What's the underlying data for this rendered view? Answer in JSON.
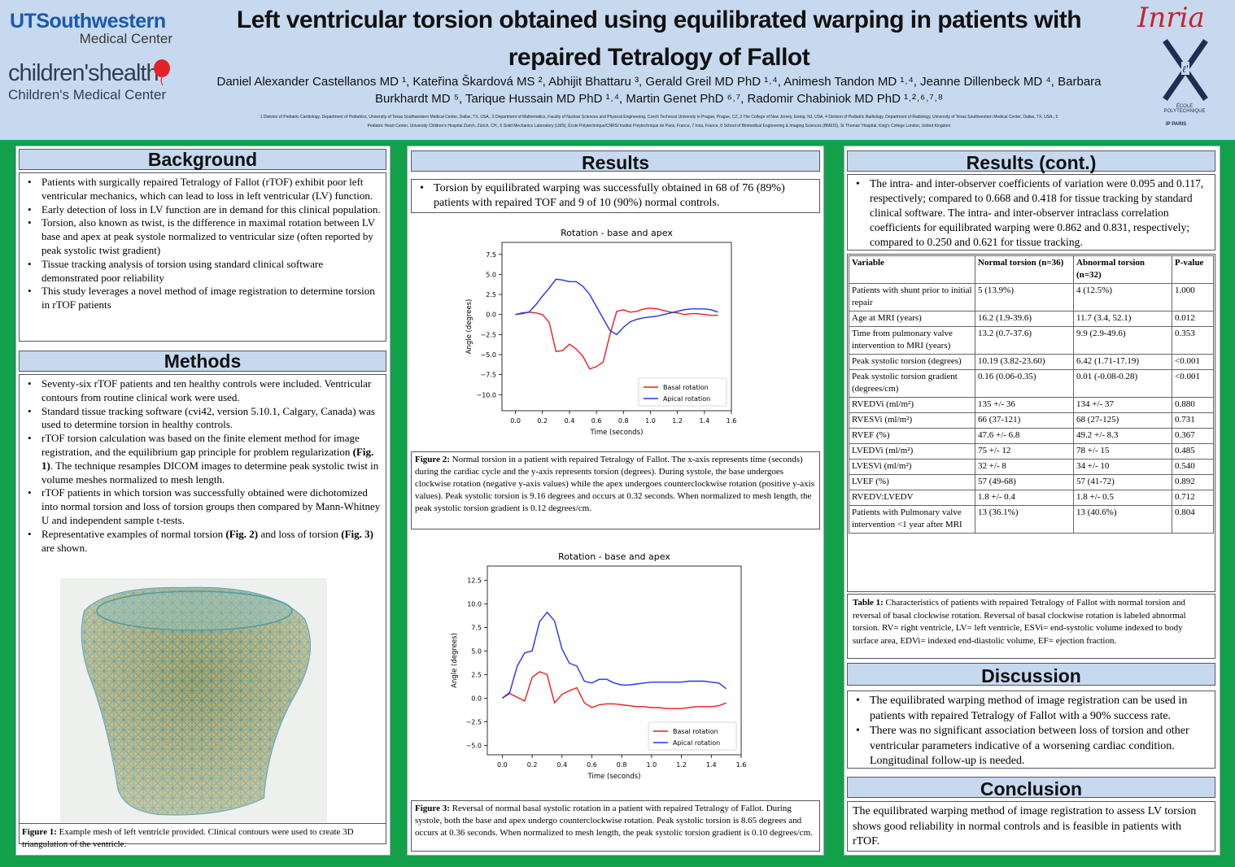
{
  "header": {
    "utsw_line1": "UTSouthwestern",
    "utsw_line2": "Medical Center",
    "ch_line1": "children'shealth",
    "ch_line2": "Children's Medical Center",
    "title": "Left ventricular torsion obtained using equilibrated warping in patients with repaired Tetralogy of Fallot",
    "authors_line1": "Daniel Alexander Castellanos MD ¹, Kateřina Škardová MS ², Abhijit Bhattaru ³, Gerald Greil MD PhD ¹˒⁴, Animesh Tandon MD ¹˒⁴, Jeanne Dillenbeck MD ⁴, Barbara",
    "authors_line2": "Burkhardt MD ⁵, Tarique Hussain MD PhD ¹˒⁴, Martin Genet PhD ⁶˒⁷, Radomir Chabiniok MD PhD ¹˒²˒⁶˒⁷˒⁸",
    "affiliations_line1": "1 Division of Pediatric Cardiology, Department of Pediatrics, University of Texas Southwestern Medical Center, Dallas, TX, USA., 2 Department of Mathematics, Faculty of Nuclear Sciences and Physical Engineering, Czech Technical University in Prague, Prague, CZ, 3 The College of New Jersey, Ewing, NJ, USA, 4 Division of Pediatric Radiology, Department of Radiology, University of Texas Southwestern Medical Center, Dallas, TX, USA., 5",
    "affiliations_line2": "Pediatric Heart Center, University Children's Hospital Zürich, Zürich, CH., 6 Solid Mechanics Laboratory (LMS), École Polytechnique/CNRS/ Institut Polytechnique de Paris, France, 7 Inria, France, 8 School of Biomedical Engineering & Imaging Sciences (BMEIS), St Thomas' Hospital, King's College London, United Kingdom",
    "inria": "Inria",
    "ecole": "ÉCOLE POLYTECHNIQUE",
    "ipparis": "IP PARIS"
  },
  "background": {
    "heading": "Background",
    "items": [
      "Patients with surgically repaired Tetralogy of Fallot (rTOF) exhibit poor left ventricular mechanics, which can lead to loss in left ventricular (LV) function.",
      "Early detection of loss in LV function are in demand for this clinical population.",
      "Torsion, also known as twist, is the difference in maximal rotation between LV base and apex at peak systole normalized to ventricular size (often reported by peak systolic twist gradient)",
      "Tissue tracking analysis of torsion using standard clinical software demonstrated poor reliability",
      "This study leverages a novel method of image registration to determine torsion in rTOF patients"
    ]
  },
  "methods": {
    "heading": "Methods",
    "item1": "Seventy-six rTOF patients and ten healthy controls were included. Ventricular contours from routine clinical work were used.",
    "item2": "Standard tissue tracking software (cvi42, version 5.10.1, Calgary, Canada) was used to determine torsion in healthy controls.",
    "item3_a": "rTOF torsion calculation was based on the finite element method for image registration, and the equilibrium gap principle for problem regularization ",
    "item3_b": "(Fig. 1)",
    "item3_c": ". The technique resamples DICOM images to determine peak systolic twist in volume meshes normalized to mesh length.",
    "item4": "rTOF patients in which torsion was successfully obtained were dichotomized into normal torsion and loss of torsion groups then compared by Mann-Whitney U and independent sample t-tests.",
    "item5_a": "Representative examples of normal torsion ",
    "item5_b": "(Fig. 2)",
    "item5_c": " and loss of torsion ",
    "item5_d": "(Fig. 3)",
    "item5_e": " are shown.",
    "fig1_label": "Figure 1:",
    "fig1_text": " Example mesh of left ventricle provided. Clinical contours were used to create 3D triangulation of the ventricle."
  },
  "results": {
    "heading": "Results",
    "item1": "Torsion by equilibrated warping was successfully obtained in 68 of 76 (89%) patients with repaired TOF and 9 of 10 (90%) normal controls.",
    "fig2_label": "Figure 2:",
    "fig2_text": " Normal torsion in a patient with repaired Tetralogy of Fallot. The x-axis represents time (seconds) during the cardiac cycle and the y-axis represents torsion (degrees). During systole, the base undergoes clockwise rotation (negative y-axis values) while the apex undergoes counterclockwise rotation (positive y-axis values). Peak systolic torsion is 9.16 degrees and occurs at 0.32 seconds. When normalized to mesh length, the peak systolic torsion gradient is 0.12 degrees/cm.",
    "fig3_label": "Figure 3:",
    "fig3_text": " Reversal of normal basal systolic rotation in a patient with repaired Tetralogy of Fallot. During systole, both the base and apex undergo counterclockwise rotation. Peak systolic torsion is 8.65 degrees and occurs at 0.36 seconds. When normalized to mesh length, the peak systolic torsion gradient is 0.10 degrees/cm."
  },
  "results_cont": {
    "heading": "Results (cont.)",
    "item1": "The intra- and inter-observer coefficients of variation were 0.095 and 0.117, respectively; compared to 0.668 and 0.418 for tissue tracking by standard clinical software. The intra- and inter-observer intraclass correlation coefficients for equilibrated warping were 0.862 and 0.831, respectively; compared to 0.250 and 0.621 for tissue tracking.",
    "table": {
      "headers": [
        "Variable",
        "Normal torsion (n=36)",
        "Abnormal torsion (n=32)",
        "P-value"
      ],
      "rows": [
        [
          "Patients with shunt prior to initial repair",
          "5 (13.9%)",
          "4 (12.5%)",
          "1.000"
        ],
        [
          "Age at MRI (years)",
          "16.2 (1.9-39.6)",
          "11.7 (3.4, 52.1)",
          "0.012"
        ],
        [
          "Time from pulmonary valve intervention to MRI (years)",
          "13.2 (0.7-37.6)",
          "9.9 (2.9-49.6)",
          "0.353"
        ],
        [
          "Peak systolic torsion (degrees)",
          "10.19 (3.82-23.60)",
          "6.42 (1.71-17.19)",
          "<0.001"
        ],
        [
          "Peak systolic torsion gradient (degrees/cm)",
          "0.16 (0.06-0.35)",
          "0.01 (-0.08-0.28)",
          "<0.001"
        ],
        [
          "RVEDVi (ml/m²)",
          "135 +/- 36",
          "134 +/- 37",
          "0.880"
        ],
        [
          "RVESVi (ml/m²)",
          "66 (37-121)",
          "68 (27-125)",
          "0.731"
        ],
        [
          "RVEF (%)",
          "47.6 +/- 6.8",
          "49.2 +/- 8.3",
          "0.367"
        ],
        [
          "LVEDVi (ml/m²)",
          "75 +/- 12",
          "78 +/- 15",
          "0.485"
        ],
        [
          "LVESVi (ml/m²)",
          "32 +/- 8",
          "34 +/- 10",
          "0.540"
        ],
        [
          "LVEF (%)",
          "57 (49-68)",
          "57 (41-72)",
          "0.892"
        ],
        [
          "RVEDV:LVEDV",
          "1.8 +/- 0.4",
          "1.8 +/- 0.5",
          "0.712"
        ],
        [
          "Patients with Pulmonary valve intervention <1 year after MRI",
          "13 (36.1%)",
          "13 (40.6%)",
          "0.804"
        ]
      ]
    },
    "table1_label": "Table 1:",
    "table1_text": " Characteristics of patients with repaired Tetralogy of Fallot with normal torsion and reversal of basal clockwise rotation. Reversal of basal clockwise rotation is labeled abnormal torsion. RV= right ventricle, LV= left ventricle, ESVi= end-systolic volume indexed to body surface area, EDVi= indexed end-diastolic volume, EF= ejection fraction."
  },
  "discussion": {
    "heading": "Discussion",
    "items": [
      "The equilibrated warping method of image registration can be used in patients with repaired Tetralogy of Fallot with a 90% success rate.",
      "There was no significant association between loss of torsion and other ventricular parameters indicative of a worsening cardiac condition. Longitudinal follow-up is needed."
    ]
  },
  "conclusion": {
    "heading": "Conclusion",
    "text": "The equilibrated warping method of image registration to assess LV torsion shows good reliability in normal controls and is feasible in patients with rTOF."
  },
  "colors": {
    "header_bg": "#c6d9ef",
    "page_bg": "#12a04a",
    "basal": "#ee1c1c",
    "apical": "#2233ee"
  },
  "chart_data": [
    {
      "type": "line",
      "title": "Rotation - base and apex",
      "xlabel": "Time (seconds)",
      "ylabel": "Angle (degrees)",
      "xlim": [
        -0.1,
        1.6
      ],
      "ylim": [
        -12.0,
        9.0
      ],
      "xticks": [
        0.0,
        0.2,
        0.4,
        0.6,
        0.8,
        1.0,
        1.2,
        1.4,
        1.6
      ],
      "xtick_labels": [
        "0.0",
        "0.2",
        "0.4",
        "0.6",
        "0.8",
        "1.0",
        "1.2",
        "1.4",
        "1.6"
      ],
      "yticks": [
        7.5,
        5.0,
        2.5,
        0.0,
        -2.5,
        -5.0,
        -7.5,
        -10.0
      ],
      "ytick_labels": [
        "7.5",
        "5.0",
        "2.5",
        "0.0",
        "−2.5",
        "−5.0",
        "−7.5",
        "−10.0"
      ],
      "legend_position": "lower-right",
      "series": [
        {
          "name": "Basal rotation",
          "color": "#ee1c1c",
          "x": [
            0.0,
            0.05,
            0.1,
            0.15,
            0.2,
            0.25,
            0.3,
            0.35,
            0.4,
            0.45,
            0.5,
            0.55,
            0.6,
            0.65,
            0.7,
            0.75,
            0.8,
            0.85,
            0.9,
            0.95,
            1.0,
            1.05,
            1.1,
            1.15,
            1.2,
            1.25,
            1.3,
            1.35,
            1.4,
            1.45,
            1.5
          ],
          "y": [
            0.0,
            0.1,
            0.3,
            0.2,
            0.0,
            -1.0,
            -4.6,
            -4.5,
            -3.7,
            -4.3,
            -5.2,
            -6.8,
            -6.5,
            -5.9,
            -2.5,
            0.4,
            0.6,
            0.3,
            0.4,
            0.7,
            0.8,
            0.7,
            0.5,
            0.3,
            0.2,
            0.0,
            0.1,
            0.1,
            0.0,
            -0.1,
            -0.1
          ]
        },
        {
          "name": "Apical rotation",
          "color": "#2233ee",
          "x": [
            0.0,
            0.05,
            0.1,
            0.15,
            0.2,
            0.25,
            0.3,
            0.35,
            0.4,
            0.45,
            0.5,
            0.55,
            0.6,
            0.65,
            0.7,
            0.75,
            0.8,
            0.85,
            0.9,
            0.95,
            1.0,
            1.05,
            1.1,
            1.15,
            1.2,
            1.25,
            1.3,
            1.35,
            1.4,
            1.45,
            1.5
          ],
          "y": [
            0.0,
            0.2,
            0.3,
            1.2,
            2.3,
            3.3,
            4.4,
            4.3,
            4.1,
            4.1,
            3.5,
            2.5,
            1.0,
            -0.5,
            -2.0,
            -2.5,
            -1.6,
            -0.9,
            -0.6,
            -0.4,
            -0.3,
            -0.2,
            0.0,
            0.2,
            0.4,
            0.6,
            0.7,
            0.7,
            0.7,
            0.6,
            0.3
          ]
        }
      ]
    },
    {
      "type": "line",
      "title": "Rotation - base and apex",
      "xlabel": "Time (seconds)",
      "ylabel": "Angle (degrees)",
      "xlim": [
        -0.1,
        1.6
      ],
      "ylim": [
        -6.0,
        14.0
      ],
      "xticks": [
        0.0,
        0.2,
        0.4,
        0.6,
        0.8,
        1.0,
        1.2,
        1.4,
        1.6
      ],
      "xtick_labels": [
        "0.0",
        "0.2",
        "0.4",
        "0.6",
        "0.8",
        "1.0",
        "1.2",
        "1.4",
        "1.6"
      ],
      "yticks": [
        12.5,
        10.0,
        7.5,
        5.0,
        2.5,
        0.0,
        -2.5,
        -5.0
      ],
      "ytick_labels": [
        "12.5",
        "10.0",
        "7.5",
        "5.0",
        "2.5",
        "0.0",
        "−2.5",
        "−5.0"
      ],
      "legend_position": "lower-right",
      "series": [
        {
          "name": "Basal rotation",
          "color": "#ee1c1c",
          "x": [
            0.0,
            0.05,
            0.1,
            0.15,
            0.2,
            0.25,
            0.3,
            0.35,
            0.4,
            0.45,
            0.5,
            0.55,
            0.6,
            0.65,
            0.7,
            0.75,
            0.8,
            0.85,
            0.9,
            0.95,
            1.0,
            1.05,
            1.1,
            1.15,
            1.2,
            1.25,
            1.3,
            1.35,
            1.4,
            1.45,
            1.5
          ],
          "y": [
            0.0,
            0.5,
            0.1,
            -0.3,
            2.2,
            2.8,
            2.5,
            -0.5,
            0.4,
            0.8,
            1.1,
            -0.5,
            -1.0,
            -0.7,
            -0.6,
            -0.6,
            -0.7,
            -0.8,
            -0.9,
            -0.9,
            -1.0,
            -1.0,
            -1.1,
            -1.1,
            -1.1,
            -1.0,
            -0.9,
            -0.9,
            -0.9,
            -0.8,
            -0.5
          ]
        },
        {
          "name": "Apical rotation",
          "color": "#2233ee",
          "x": [
            0.0,
            0.05,
            0.1,
            0.15,
            0.2,
            0.25,
            0.3,
            0.35,
            0.4,
            0.45,
            0.5,
            0.55,
            0.6,
            0.65,
            0.7,
            0.75,
            0.8,
            0.85,
            0.9,
            0.95,
            1.0,
            1.05,
            1.1,
            1.15,
            1.2,
            1.25,
            1.3,
            1.35,
            1.4,
            1.45,
            1.5
          ],
          "y": [
            0.0,
            0.6,
            3.4,
            4.8,
            5.0,
            8.1,
            9.1,
            8.2,
            5.2,
            3.7,
            3.4,
            1.8,
            1.6,
            2.0,
            2.0,
            1.6,
            1.4,
            1.4,
            1.5,
            1.6,
            1.7,
            1.7,
            1.7,
            1.7,
            1.7,
            1.8,
            1.8,
            1.8,
            1.7,
            1.6,
            1.0
          ]
        }
      ]
    }
  ]
}
